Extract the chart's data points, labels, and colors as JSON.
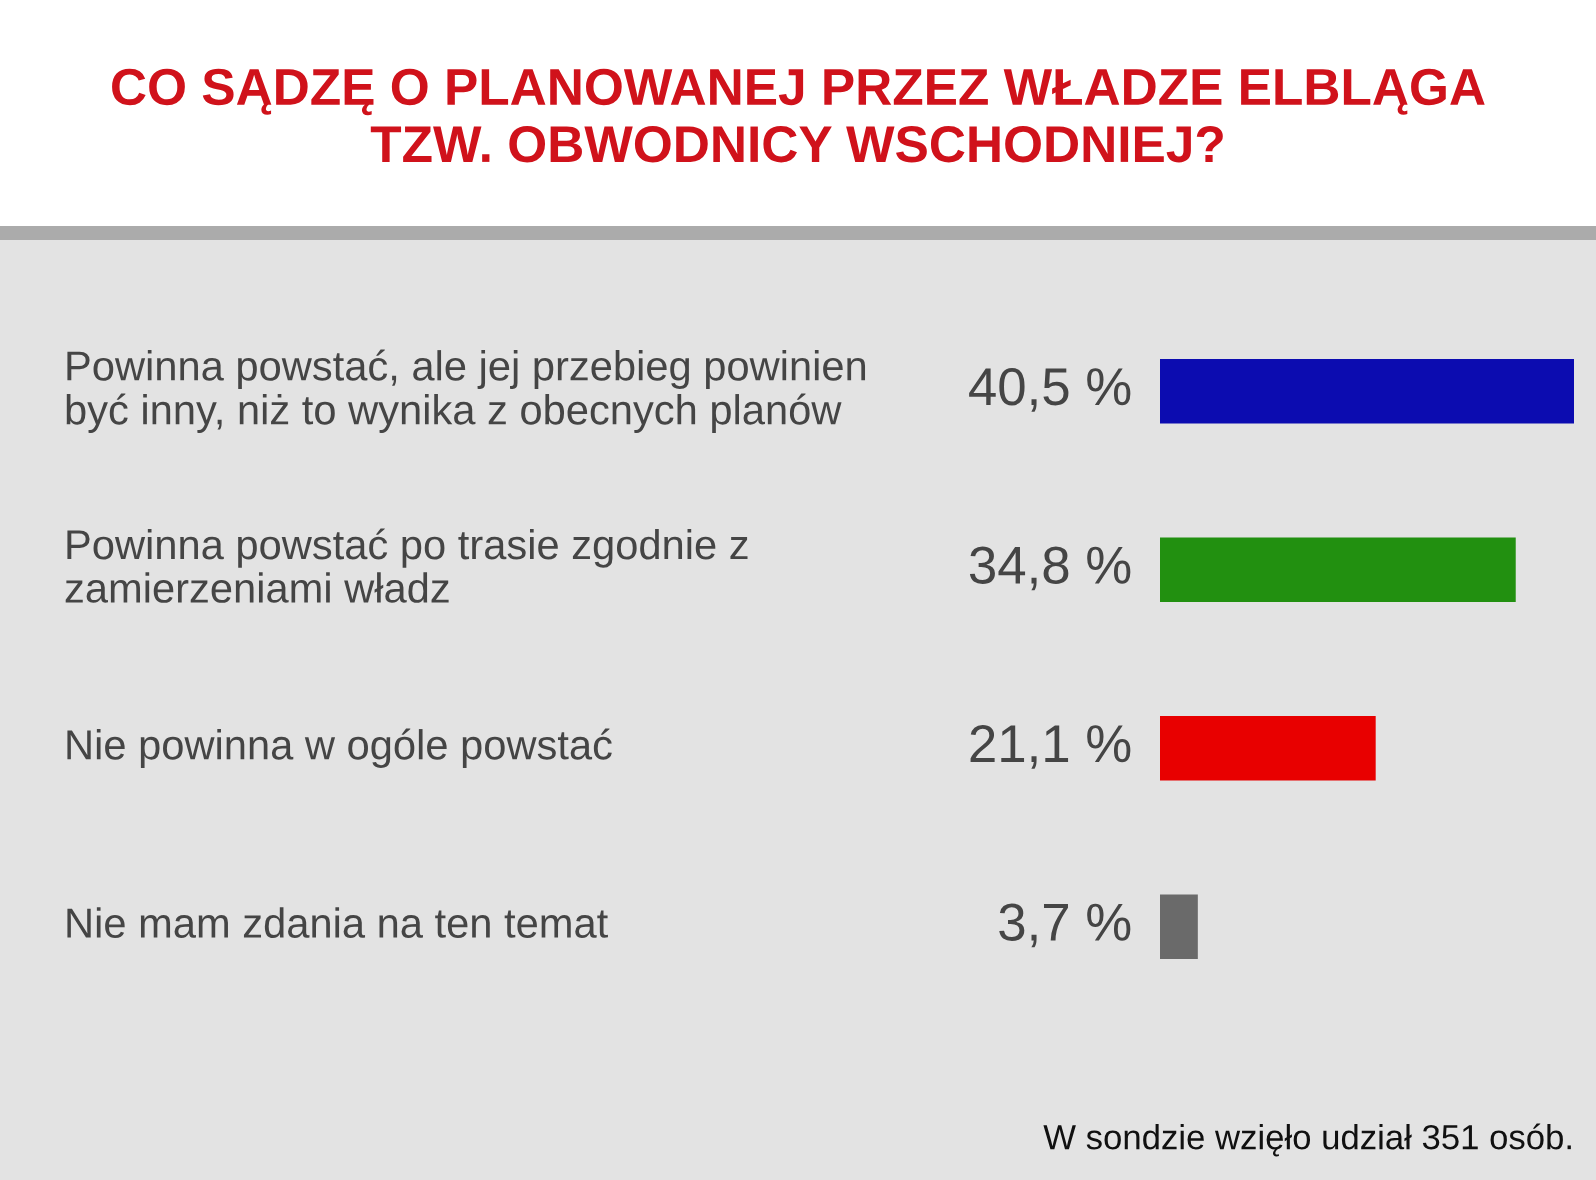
{
  "chart_data": {
    "type": "bar",
    "orientation": "horizontal",
    "title": "CO SĄDZĘ O PLANOWANEJ PRZEZ WŁADZE ELBLĄGA\nTZW. OBWODNICY WSCHODNIEJ?",
    "categories": [
      "Powinna powstać, ale jej przebieg powinien\nbyć inny, niż to wynika z obecnych planów",
      "Powinna powstać po trasie zgodnie z\nzamierzeniami władz",
      "Nie powinna w ogóle powstać",
      "Nie mam zdania na ten temat"
    ],
    "values": [
      40.5,
      34.8,
      21.1,
      3.7
    ],
    "colors": [
      "#0c0cb0",
      "#229010",
      "#e80000",
      "#6a6a6a"
    ],
    "value_labels": [
      "40,5 %",
      "34,8 %",
      "21,1 %",
      "3,7 %"
    ],
    "annotations": [
      "W sondzie wzięło udział 351 osób."
    ]
  }
}
